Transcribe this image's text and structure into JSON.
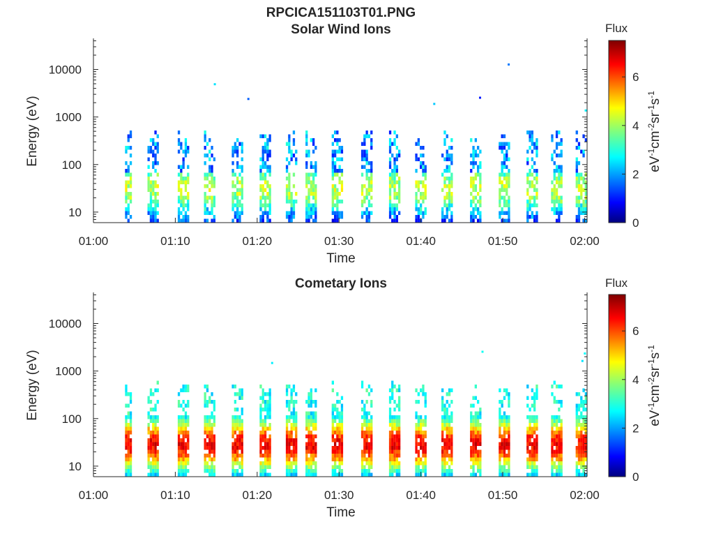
{
  "figure": {
    "title": "RPCICA151103T01.PNG"
  },
  "colors": {
    "axis": "#262626",
    "background": "#ffffff",
    "colormap": [
      "#00007f",
      "#0000ff",
      "#007fff",
      "#00ffff",
      "#7fff7f",
      "#ffff00",
      "#ff7f00",
      "#ff0000",
      "#7f0000"
    ]
  },
  "chart_data": [
    {
      "type": "heatmap",
      "title": "Solar Wind Ions",
      "xlabel": "Time",
      "ylabel": "Energy (eV)",
      "x_ticks": [
        "01:00",
        "01:10",
        "01:20",
        "01:30",
        "01:40",
        "01:50",
        "02:00"
      ],
      "y_ticks": [
        "10",
        "100",
        "1000",
        "10000"
      ],
      "y_scale": "log",
      "ylim": [
        6,
        45000
      ],
      "colorbar": {
        "title": "Flux",
        "label": "eV-1cm-2sr-1s-1",
        "label_parts": [
          "eV",
          "-1",
          "cm",
          "-2",
          "sr",
          "-1",
          "s",
          "-1"
        ],
        "ticks": [
          "0",
          "2",
          "4",
          "6"
        ],
        "clim": [
          0,
          7.5
        ]
      },
      "bursts_minutes": [
        4.0,
        7.3,
        11.0,
        14.2,
        17.6,
        21.0,
        24.2,
        26.6,
        29.8,
        33.4,
        36.8,
        40.0,
        43.2,
        46.7,
        50.2,
        53.6,
        56.6,
        59.6
      ],
      "sparse_points": [
        {
          "t": 14.7,
          "e": 4800,
          "v": 2.5
        },
        {
          "t": 18.8,
          "e": 2350,
          "v": 1.5
        },
        {
          "t": 41.5,
          "e": 1850,
          "v": 2.3
        },
        {
          "t": 50.6,
          "e": 12500,
          "v": 1.7
        },
        {
          "t": 47.1,
          "e": 2500,
          "v": 1.0
        },
        {
          "t": 60.0,
          "e": 1350,
          "v": 2.6
        }
      ]
    },
    {
      "type": "heatmap",
      "title": "Cometary Ions",
      "xlabel": "Time",
      "ylabel": "Energy (eV)",
      "x_ticks": [
        "01:00",
        "01:10",
        "01:20",
        "01:30",
        "01:40",
        "01:50",
        "02:00"
      ],
      "y_ticks": [
        "10",
        "100",
        "1000",
        "10000"
      ],
      "y_scale": "log",
      "ylim": [
        6,
        45000
      ],
      "colorbar": {
        "title": "Flux",
        "label": "eV-1cm-2sr-1s-1",
        "label_parts": [
          "eV",
          "-1",
          "cm",
          "-2",
          "sr",
          "-1",
          "s",
          "-1"
        ],
        "ticks": [
          "0",
          "2",
          "4",
          "6"
        ],
        "clim": [
          0,
          7.5
        ]
      },
      "bursts_minutes": [
        4.0,
        7.3,
        11.0,
        14.2,
        17.6,
        21.0,
        24.2,
        26.6,
        29.8,
        33.4,
        36.8,
        40.0,
        43.2,
        46.7,
        50.2,
        53.6,
        56.6,
        59.6
      ],
      "sparse_points": [
        {
          "t": 21.7,
          "e": 1450,
          "v": 2.6
        },
        {
          "t": 47.4,
          "e": 2500,
          "v": 2.8
        },
        {
          "t": 59.9,
          "e": 2300,
          "v": 2.7
        },
        {
          "t": 59.6,
          "e": 1600,
          "v": 2.5
        }
      ]
    }
  ]
}
